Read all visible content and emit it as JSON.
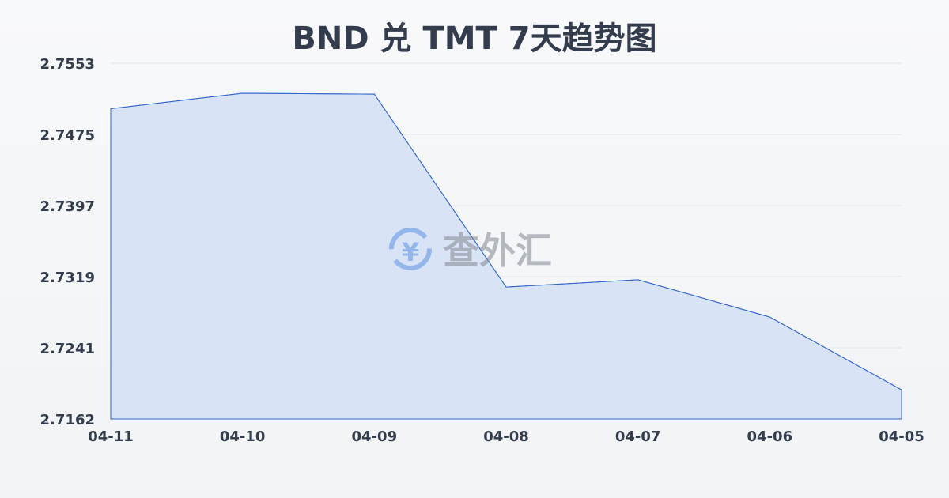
{
  "chart_data": {
    "type": "area",
    "title": "BND 兑 TMT 7天趋势图",
    "xlabel": "",
    "ylabel": "",
    "categories": [
      "04-11",
      "04-10",
      "04-09",
      "04-08",
      "04-07",
      "04-06",
      "04-05"
    ],
    "values": [
      2.7503,
      2.752,
      2.7519,
      2.7307,
      2.7315,
      2.7274,
      2.7194
    ],
    "ylim": [
      2.7162,
      2.7553
    ],
    "yticks": [
      "2.7553",
      "2.7475",
      "2.7397",
      "2.7319",
      "2.7241",
      "2.7162"
    ],
    "grid": true,
    "line_color": "#3366cc",
    "fill_color": "#d9e3f6"
  },
  "watermark": {
    "text": "查外汇",
    "icon": "yen-exchange-icon"
  }
}
